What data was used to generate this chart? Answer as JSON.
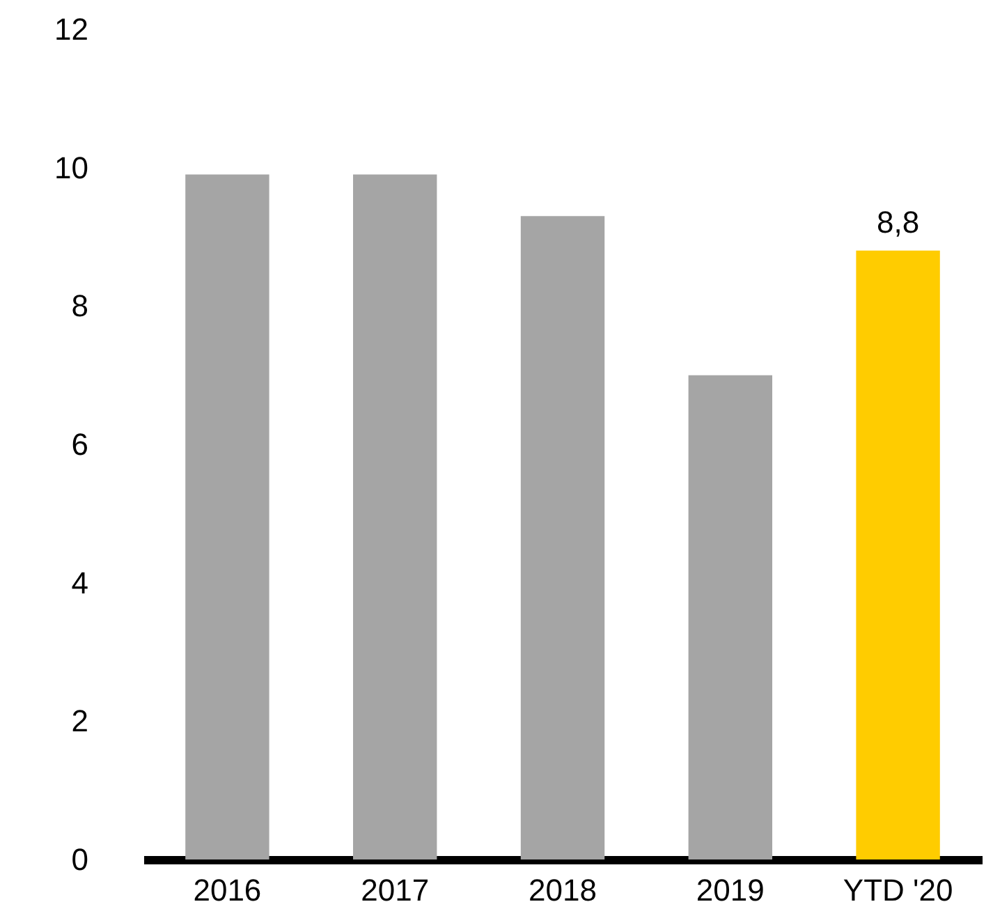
{
  "chart_data": {
    "type": "bar",
    "categories": [
      "2016",
      "2017",
      "2018",
      "2019",
      "YTD '20"
    ],
    "values": [
      9.9,
      9.9,
      9.3,
      7.0,
      8.8
    ],
    "colors": [
      "#a5a5a5",
      "#a5a5a5",
      "#a5a5a5",
      "#a5a5a5",
      "#ffcc00"
    ],
    "value_labels": [
      null,
      null,
      null,
      null,
      "8,8"
    ],
    "ylim": [
      0,
      12
    ],
    "yticks": [
      0,
      2,
      4,
      6,
      8,
      10,
      12
    ],
    "grid": false
  }
}
